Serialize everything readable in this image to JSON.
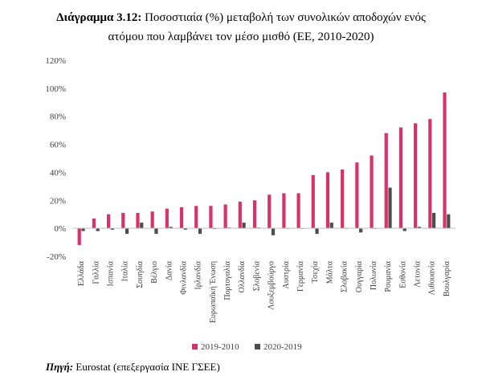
{
  "figure": {
    "title_bold": "Διάγραμμα 3.12:",
    "title_line1": "Ποσοστιαία (%) μεταβολή των συνολικών αποδοχών ενός",
    "title_line2": "ατόμου που λαμβάνει τον μέσο μισθό (ΕΕ, 2010-2020)"
  },
  "source": {
    "label": "Πηγή:",
    "text": " Eurostat (επεξεργασία ΙΝΕ ΓΣΕΕ)"
  },
  "chart_data": {
    "type": "bar",
    "ylim": [
      -20,
      120
    ],
    "yticks": [
      -20,
      0,
      20,
      40,
      60,
      80,
      100,
      120
    ],
    "ytick_labels": [
      "-20%",
      "0%",
      "20%",
      "40%",
      "60%",
      "80%",
      "100%",
      "120%"
    ],
    "grid": false,
    "legend_position": "bottom",
    "categories": [
      "Ελλάδα",
      "Γαλλία",
      "Ισπανία",
      "Ιταλία",
      "Σουηδία",
      "Βέλγιο",
      "Δανία",
      "Φινλανδία",
      "Ιρλανδία",
      "Ευρωπαϊκή Ένωση",
      "Πορτογαλία",
      "Ολλανδία",
      "Σλοβενία",
      "Λουξεμβούργο",
      "Αυστρία",
      "Γερμανία",
      "Τσεχία",
      "Μάλτα",
      "Σλοβακία",
      "Ουγγαρία",
      "Πολωνία",
      "Ρουμανία",
      "Εσθονία",
      "Λετονία",
      "Λιθουανία",
      "Βουλγαρία"
    ],
    "series": [
      {
        "name": "2019-2010",
        "color": "#d6336c",
        "values": [
          -12,
          7,
          10,
          11,
          11,
          12,
          14,
          15,
          16,
          16,
          17,
          19,
          20,
          24,
          25,
          25,
          38,
          40,
          42,
          47,
          52,
          68,
          72,
          75,
          78,
          97
        ]
      },
      {
        "name": "2020-2019",
        "color": "#4d4d4d",
        "values": [
          -2,
          -2,
          -1,
          -4,
          4,
          -4,
          1,
          -1,
          -4,
          -0.5,
          0.5,
          4,
          0.5,
          -5,
          0,
          0,
          -4,
          4,
          0,
          -3,
          0,
          29,
          -2,
          1,
          11,
          10
        ]
      }
    ]
  }
}
